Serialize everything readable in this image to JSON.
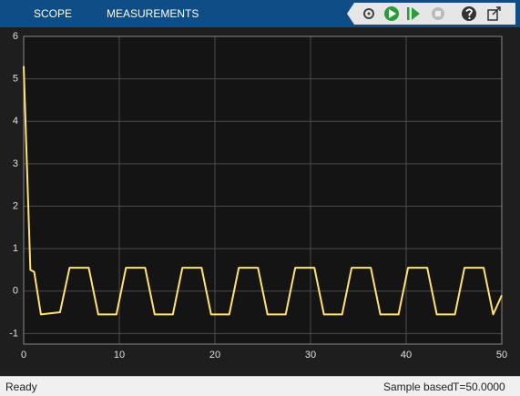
{
  "toolbar": {
    "tabs": [
      "SCOPE",
      "MEASUREMENTS"
    ]
  },
  "chart_data": {
    "type": "line",
    "x": [
      0,
      0.7,
      1.1,
      1.8,
      3.8,
      4.8,
      6.8,
      7.8,
      9.7,
      10.7,
      12.7,
      13.7,
      15.6,
      16.6,
      18.6,
      19.6,
      21.5,
      22.5,
      24.5,
      25.5,
      27.4,
      28.4,
      30.4,
      31.4,
      33.3,
      34.3,
      36.3,
      37.3,
      39.2,
      40.2,
      42.2,
      43.2,
      45.1,
      46.1,
      48.1,
      49.1,
      50
    ],
    "series": [
      {
        "color": "#ffe36e",
        "values": [
          5.3,
          0.5,
          0.45,
          -0.55,
          -0.5,
          0.55,
          0.55,
          -0.55,
          -0.55,
          0.55,
          0.55,
          -0.55,
          -0.55,
          0.55,
          0.55,
          -0.55,
          -0.55,
          0.55,
          0.55,
          -0.55,
          -0.55,
          0.55,
          0.55,
          -0.55,
          -0.55,
          0.55,
          0.55,
          -0.55,
          -0.55,
          0.55,
          0.55,
          -0.55,
          -0.55,
          0.55,
          0.55,
          -0.55,
          -0.1
        ]
      }
    ],
    "xlim": [
      0,
      50
    ],
    "ylim": [
      -1.25,
      6
    ],
    "xticks": [
      0,
      10,
      20,
      30,
      40,
      50
    ],
    "yticks": [
      -1,
      0,
      1,
      2,
      3,
      4,
      5,
      6
    ],
    "grid": true
  },
  "status_bar": {
    "status": "Ready",
    "mode": "Sample based",
    "time": "T=50.0000"
  }
}
